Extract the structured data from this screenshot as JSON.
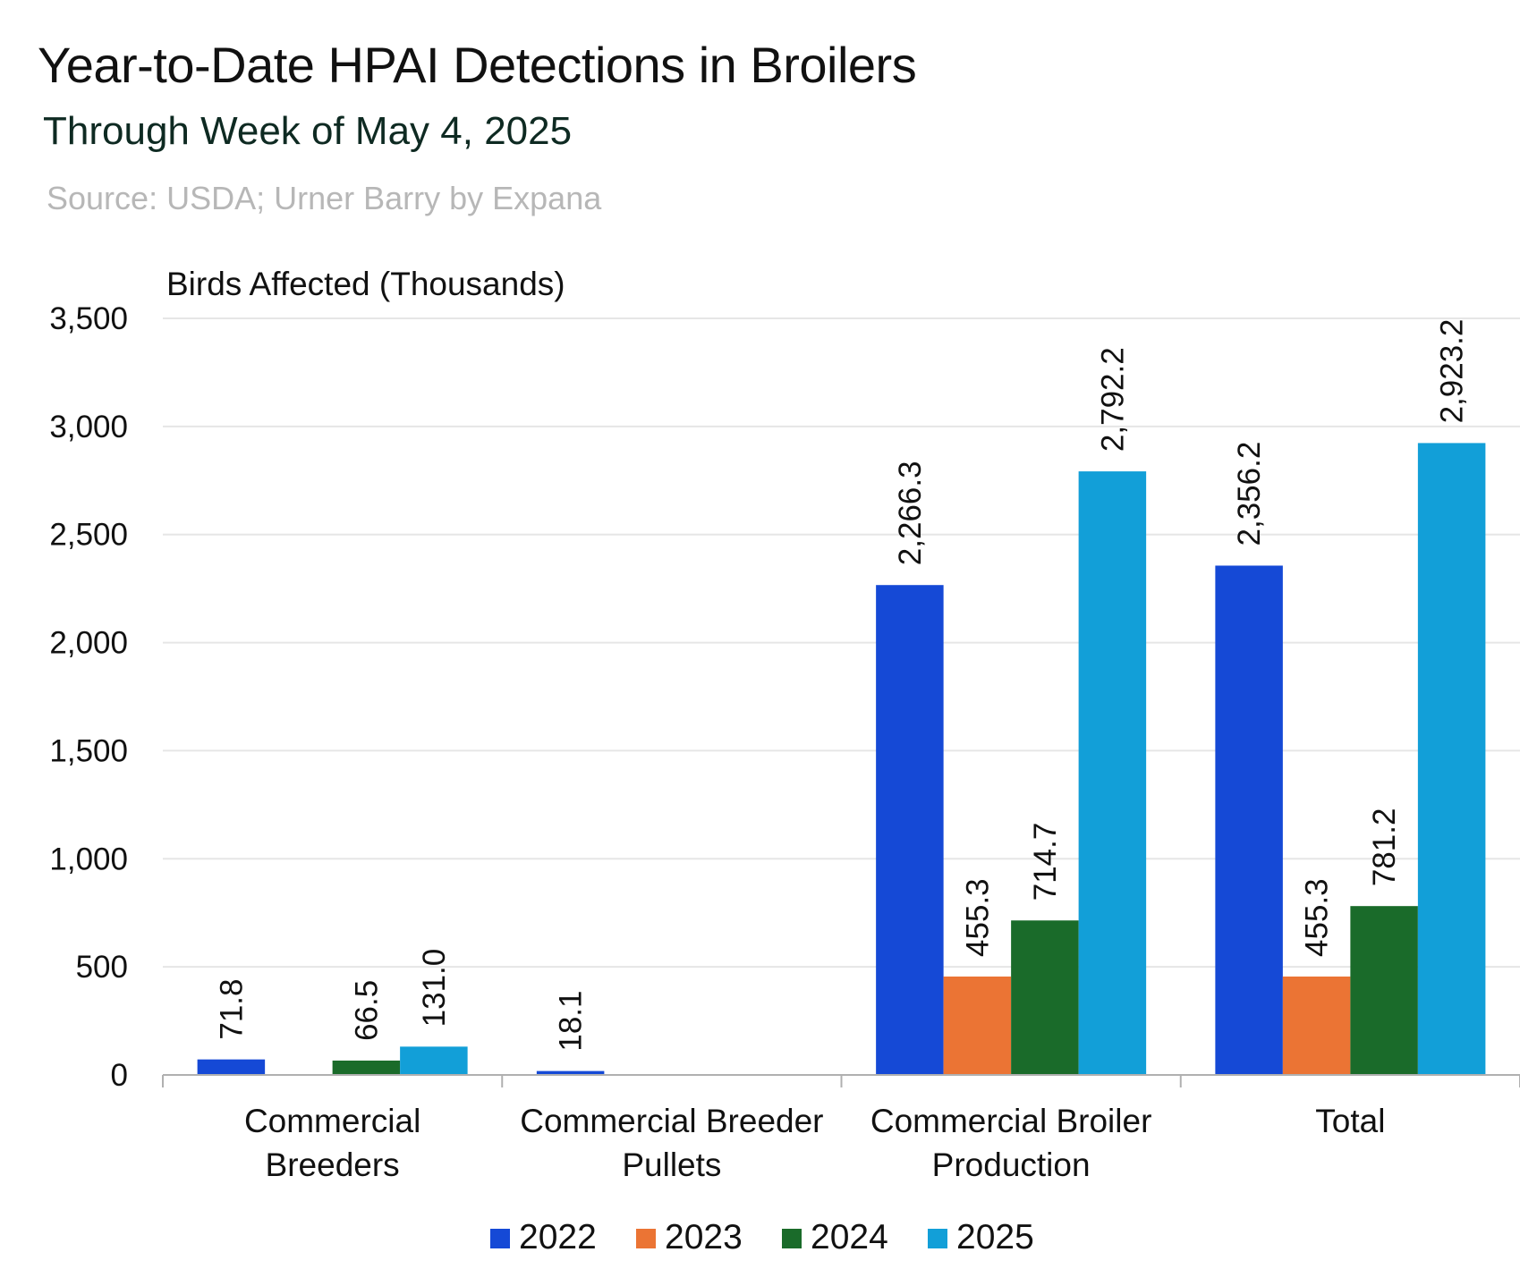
{
  "chart_data": {
    "type": "bar",
    "title": "Year-to-Date HPAI Detections in Broilers",
    "subtitle": "Through Week of May 4, 2025",
    "source": "Source: USDA; Urner Barry by Expana",
    "ylabel": "Birds Affected (Thousands)",
    "ylim": [
      0,
      3500
    ],
    "yticks": [
      0,
      500,
      1000,
      1500,
      2000,
      2500,
      3000,
      3500
    ],
    "ytick_labels": [
      "0",
      "500",
      "1,000",
      "1,500",
      "2,000",
      "2,500",
      "3,000",
      "3,500"
    ],
    "grid": true,
    "legend_position": "bottom",
    "categories": [
      [
        "Commercial",
        "Breeders"
      ],
      [
        "Commercial Breeder",
        "Pullets"
      ],
      [
        "Commercial Broiler",
        "Production"
      ],
      [
        "Total"
      ]
    ],
    "series": [
      {
        "name": "2022",
        "color": "#1549d6",
        "values": [
          71.8,
          18.1,
          2266.3,
          2356.2
        ],
        "labels": [
          "71.8",
          "18.1",
          "2,266.3",
          "2,356.2"
        ]
      },
      {
        "name": "2023",
        "color": "#eb7434",
        "values": [
          null,
          null,
          455.3,
          455.3
        ],
        "labels": [
          "",
          "",
          "455.3",
          "455.3"
        ]
      },
      {
        "name": "2024",
        "color": "#1a6b2a",
        "values": [
          66.5,
          null,
          714.7,
          781.2
        ],
        "labels": [
          "66.5",
          "",
          "714.7",
          "781.2"
        ]
      },
      {
        "name": "2025",
        "color": "#129fd8",
        "values": [
          131.0,
          null,
          2792.2,
          2923.2
        ],
        "labels": [
          "131.0",
          "",
          "2,792.2",
          "2,923.2"
        ]
      }
    ]
  }
}
